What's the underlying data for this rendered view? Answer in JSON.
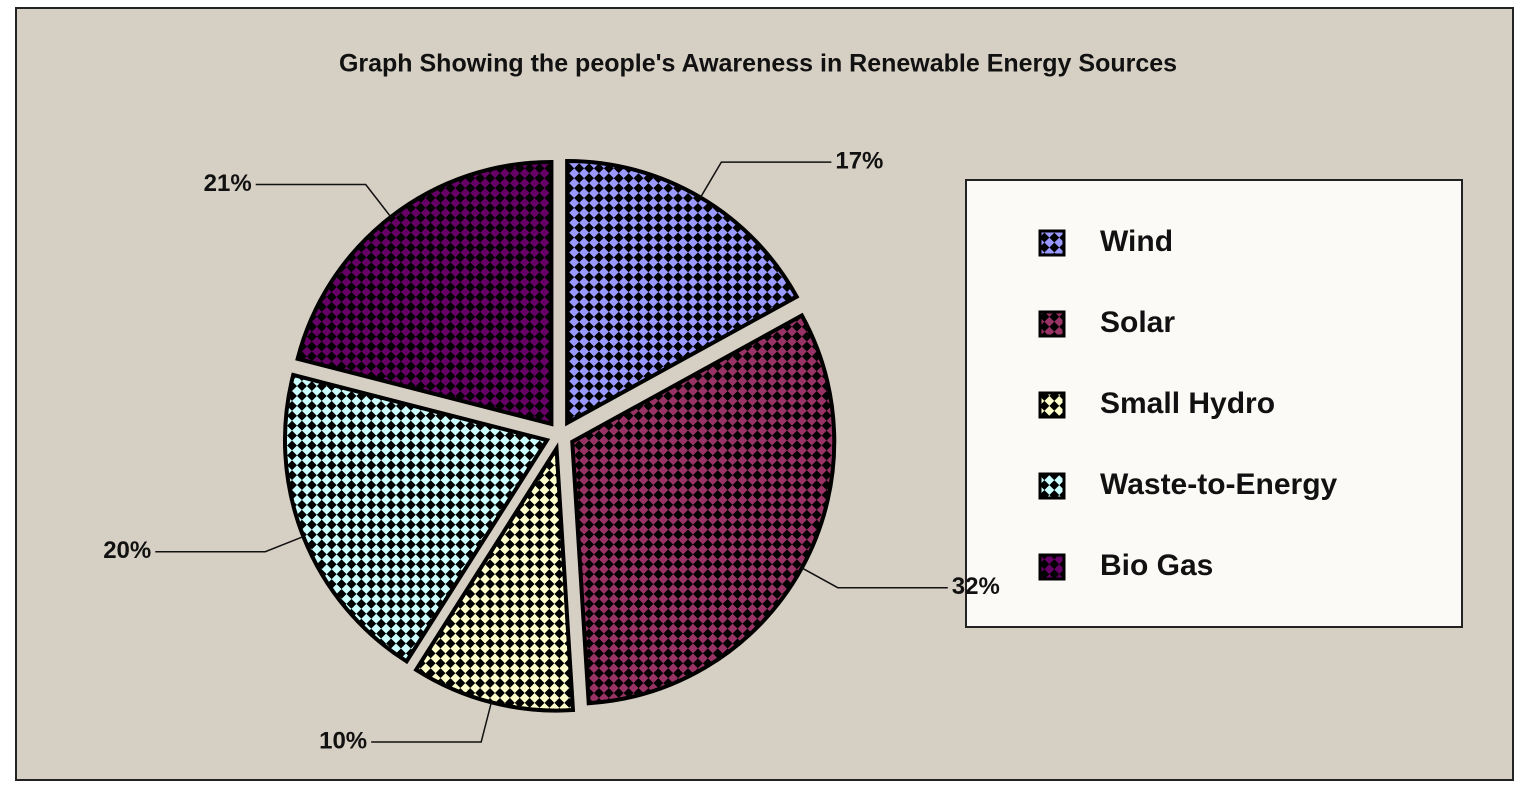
{
  "chart_data": {
    "type": "pie",
    "title": "Graph Showing the people's Awareness in Renewable Energy Sources",
    "categories": [
      "Wind",
      "Solar",
      "Small Hydro",
      "Waste-to-Energy",
      "Bio Gas"
    ],
    "values": [
      17,
      32,
      10,
      20,
      21
    ],
    "value_labels": [
      "17%",
      "32%",
      "10%",
      "20%",
      "21%"
    ],
    "colors": [
      "#9999ff",
      "#993366",
      "#ffffcc",
      "#ccffff",
      "#660066"
    ],
    "legend": "right"
  }
}
